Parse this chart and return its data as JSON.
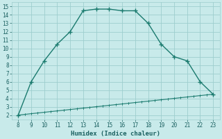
{
  "upper_x": [
    8,
    9,
    10,
    11,
    12,
    13,
    14,
    15,
    16,
    17,
    18,
    19,
    20,
    21,
    22,
    23
  ],
  "upper_y": [
    2.0,
    6.0,
    8.5,
    10.5,
    12.0,
    14.5,
    14.7,
    14.7,
    14.5,
    14.5,
    13.0,
    10.5,
    9.0,
    8.5,
    6.0,
    4.5
  ],
  "line_x": [
    8,
    23
  ],
  "line_y": [
    2.0,
    4.5
  ],
  "line_color": "#1a7a6e",
  "bg_color": "#c8eaea",
  "grid_color": "#9ecece",
  "xlabel": "Humidex (Indice chaleur)",
  "xlim": [
    7.5,
    23.5
  ],
  "ylim": [
    1.5,
    15.5
  ],
  "xticks": [
    8,
    9,
    10,
    11,
    12,
    13,
    14,
    15,
    16,
    17,
    18,
    19,
    20,
    21,
    22,
    23
  ],
  "yticks": [
    2,
    3,
    4,
    5,
    6,
    7,
    8,
    9,
    10,
    11,
    12,
    13,
    14,
    15
  ],
  "font_color": "#1a6060"
}
